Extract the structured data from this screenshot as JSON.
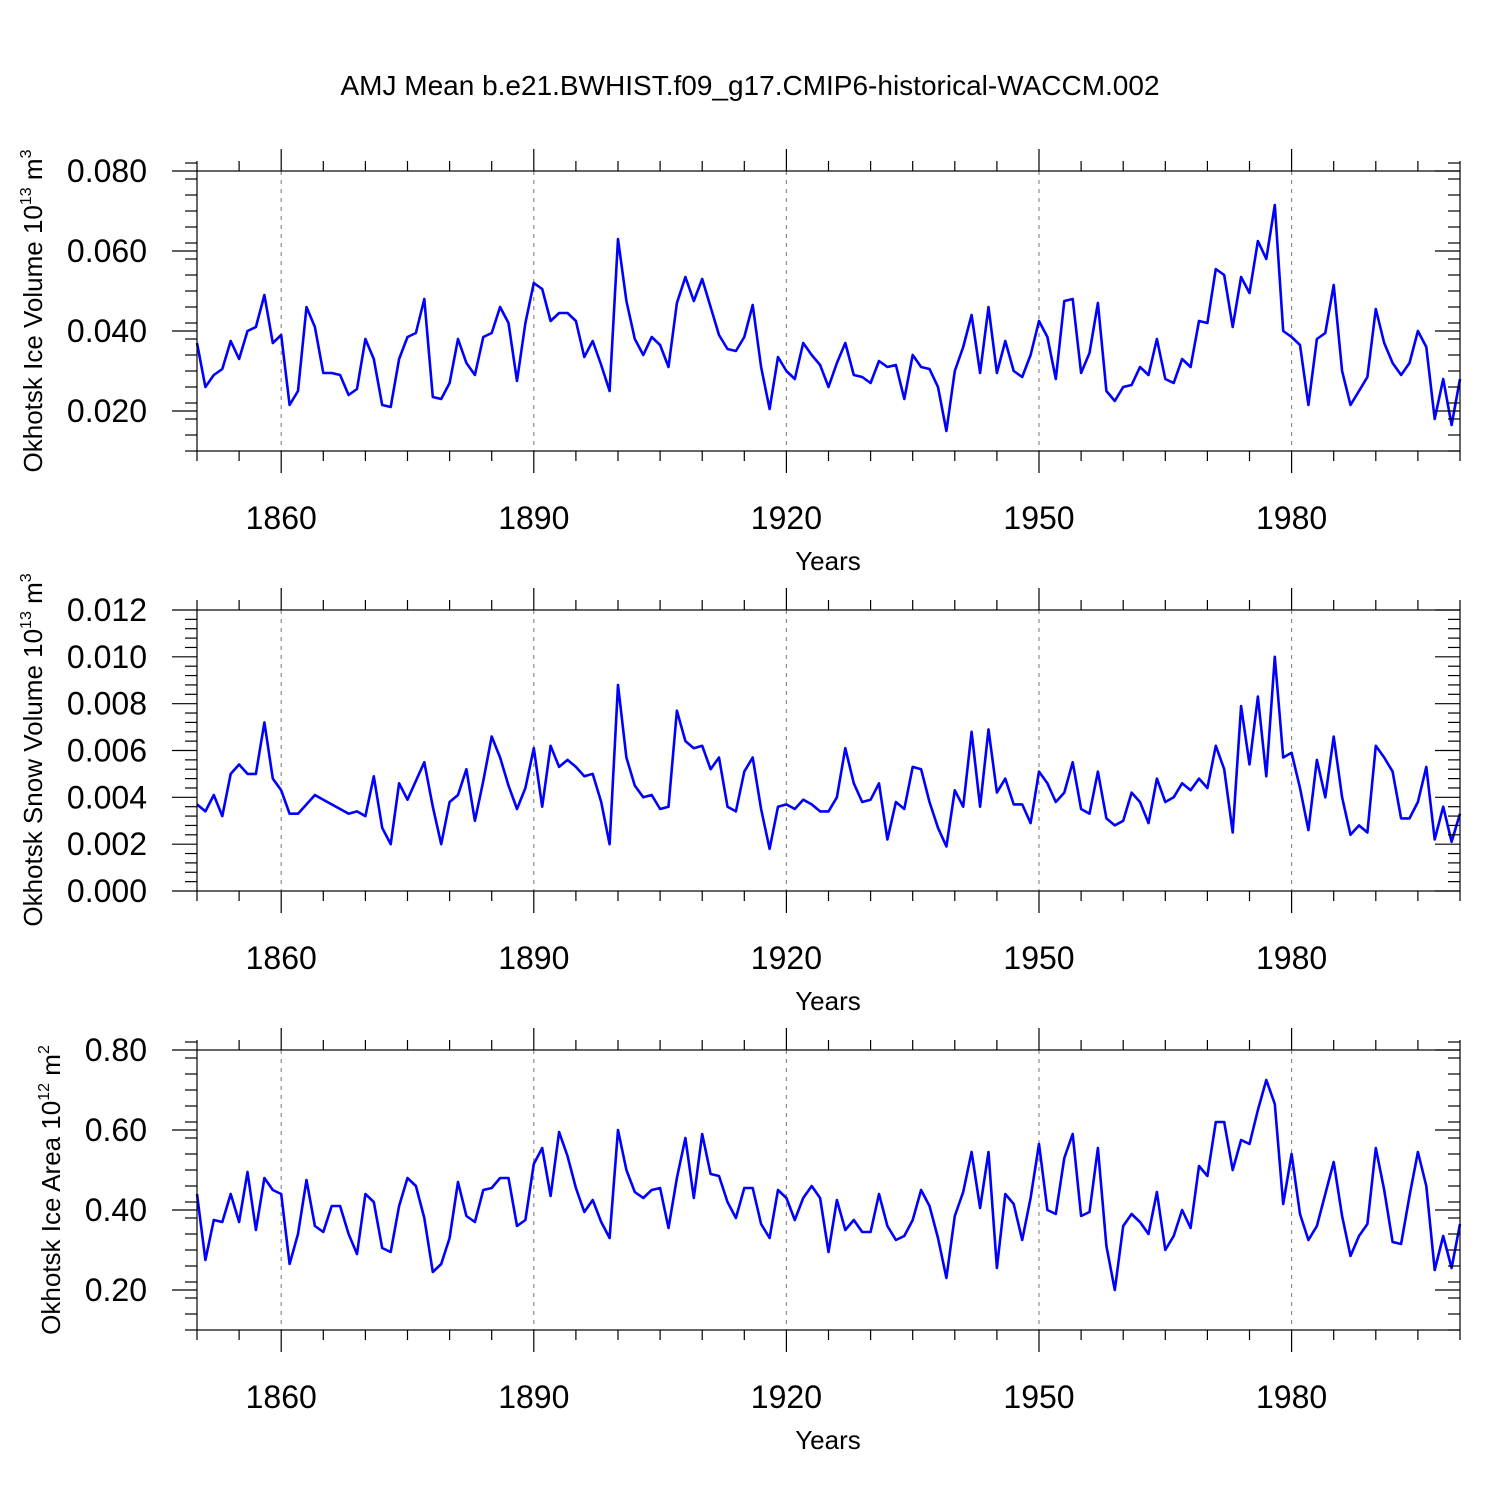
{
  "title": "AMJ Mean b.e21.BWHIST.f09_g17.CMIP6-historical-WACCM.002",
  "line_color": "#0000ff",
  "chart_data": [
    {
      "type": "line",
      "ylabel": "Okhotsk Ice Volume 10",
      "ylabel_exp": "13",
      "ylabel_unit": " m",
      "ylabel_unit_exp": "3",
      "xlabel": "Years",
      "xlim": [
        1850,
        2000
      ],
      "ylim": [
        0.01,
        0.08
      ],
      "yticks": [
        0.02,
        0.04,
        0.06,
        0.08
      ],
      "ytick_labels": [
        "0.020",
        "0.040",
        "0.060",
        "0.080"
      ],
      "xticks": [
        1860,
        1890,
        1920,
        1950,
        1980
      ],
      "xtick_labels": [
        "1860",
        "1890",
        "1920",
        "1950",
        "1980"
      ],
      "grid": "vertical dashed at major x ticks",
      "x_start": 1850,
      "values": [
        0.037,
        0.026,
        0.029,
        0.0305,
        0.0375,
        0.033,
        0.04,
        0.041,
        0.049,
        0.037,
        0.039,
        0.0215,
        0.025,
        0.046,
        0.041,
        0.0295,
        0.0295,
        0.029,
        0.024,
        0.0255,
        0.038,
        0.033,
        0.0215,
        0.021,
        0.033,
        0.0385,
        0.0395,
        0.048,
        0.0235,
        0.023,
        0.027,
        0.038,
        0.032,
        0.029,
        0.0385,
        0.0395,
        0.046,
        0.042,
        0.0275,
        0.042,
        0.052,
        0.0505,
        0.0425,
        0.0445,
        0.0445,
        0.0425,
        0.0335,
        0.0375,
        0.0315,
        0.025,
        0.063,
        0.0475,
        0.038,
        0.034,
        0.0385,
        0.0365,
        0.031,
        0.047,
        0.0535,
        0.0475,
        0.053,
        0.046,
        0.039,
        0.0355,
        0.035,
        0.0385,
        0.0465,
        0.031,
        0.0205,
        0.0335,
        0.03,
        0.028,
        0.037,
        0.034,
        0.0315,
        0.026,
        0.032,
        0.037,
        0.029,
        0.0285,
        0.027,
        0.0325,
        0.031,
        0.0315,
        0.023,
        0.034,
        0.031,
        0.0305,
        0.026,
        0.015,
        0.03,
        0.036,
        0.044,
        0.0295,
        0.046,
        0.0295,
        0.0375,
        0.03,
        0.0285,
        0.034,
        0.0425,
        0.0385,
        0.028,
        0.0475,
        0.048,
        0.0295,
        0.0345,
        0.047,
        0.025,
        0.0225,
        0.026,
        0.0265,
        0.031,
        0.029,
        0.038,
        0.028,
        0.027,
        0.033,
        0.031,
        0.0425,
        0.042,
        0.0555,
        0.054,
        0.041,
        0.0535,
        0.0495,
        0.0625,
        0.058,
        0.0715,
        0.04,
        0.0385,
        0.0365,
        0.0215,
        0.038,
        0.0395,
        0.0515,
        0.03,
        0.0215,
        0.025,
        0.0285,
        0.0455,
        0.037,
        0.032,
        0.029,
        0.032,
        0.04,
        0.036,
        0.018,
        0.028,
        0.0165,
        0.028
      ]
    },
    {
      "type": "line",
      "ylabel": "Okhotsk Snow Volume 10",
      "ylabel_exp": "13",
      "ylabel_unit": " m",
      "ylabel_unit_exp": "3",
      "xlabel": "Years",
      "xlim": [
        1850,
        2000
      ],
      "ylim": [
        0.0,
        0.012
      ],
      "yticks": [
        0.0,
        0.002,
        0.004,
        0.006,
        0.008,
        0.01,
        0.012
      ],
      "ytick_labels": [
        "0.000",
        "0.002",
        "0.004",
        "0.006",
        "0.008",
        "0.010",
        "0.012"
      ],
      "xticks": [
        1860,
        1890,
        1920,
        1950,
        1980
      ],
      "xtick_labels": [
        "1860",
        "1890",
        "1920",
        "1950",
        "1980"
      ],
      "grid": "vertical dashed at major x ticks",
      "x_start": 1850,
      "values": [
        0.0037,
        0.0034,
        0.0041,
        0.0032,
        0.005,
        0.0054,
        0.005,
        0.005,
        0.0072,
        0.0048,
        0.0043,
        0.0033,
        0.0033,
        0.0037,
        0.0041,
        0.0039,
        0.0037,
        0.0035,
        0.0033,
        0.0034,
        0.0032,
        0.0049,
        0.0027,
        0.002,
        0.0046,
        0.0039,
        0.0047,
        0.0055,
        0.0036,
        0.002,
        0.0038,
        0.0041,
        0.0052,
        0.003,
        0.0047,
        0.0066,
        0.0057,
        0.0045,
        0.0035,
        0.0044,
        0.0061,
        0.0036,
        0.0062,
        0.0053,
        0.0056,
        0.0053,
        0.0049,
        0.005,
        0.0038,
        0.002,
        0.0088,
        0.0057,
        0.0045,
        0.004,
        0.0041,
        0.0035,
        0.0036,
        0.0077,
        0.0064,
        0.0061,
        0.0062,
        0.0052,
        0.0057,
        0.0036,
        0.0034,
        0.0051,
        0.0057,
        0.0035,
        0.0018,
        0.0036,
        0.0037,
        0.0035,
        0.0039,
        0.0037,
        0.0034,
        0.0034,
        0.004,
        0.0061,
        0.0046,
        0.0038,
        0.0039,
        0.0046,
        0.0022,
        0.0038,
        0.0035,
        0.0053,
        0.0052,
        0.0038,
        0.0027,
        0.0019,
        0.0043,
        0.0036,
        0.0068,
        0.0036,
        0.0069,
        0.0042,
        0.0048,
        0.0037,
        0.0037,
        0.0029,
        0.0051,
        0.0046,
        0.0038,
        0.0042,
        0.0055,
        0.0035,
        0.0033,
        0.0051,
        0.0031,
        0.0028,
        0.003,
        0.0042,
        0.0038,
        0.0029,
        0.0048,
        0.0038,
        0.004,
        0.0046,
        0.0043,
        0.0048,
        0.0044,
        0.0062,
        0.0052,
        0.0025,
        0.0079,
        0.0054,
        0.0083,
        0.0049,
        0.01,
        0.0057,
        0.0059,
        0.0044,
        0.0026,
        0.0056,
        0.004,
        0.0066,
        0.004,
        0.0024,
        0.0028,
        0.0025,
        0.0062,
        0.0057,
        0.0051,
        0.0031,
        0.0031,
        0.0038,
        0.0053,
        0.0022,
        0.0036,
        0.0021,
        0.0033
      ]
    },
    {
      "type": "line",
      "ylabel": "Okhotsk Ice Area 10",
      "ylabel_exp": "12",
      "ylabel_unit": " m",
      "ylabel_unit_exp": "2",
      "xlabel": "Years",
      "xlim": [
        1850,
        2000
      ],
      "ylim": [
        0.1,
        0.8
      ],
      "yticks": [
        0.2,
        0.4,
        0.6,
        0.8
      ],
      "ytick_labels": [
        "0.20",
        "0.40",
        "0.60",
        "0.80"
      ],
      "xticks": [
        1860,
        1890,
        1920,
        1950,
        1980
      ],
      "xtick_labels": [
        "1860",
        "1890",
        "1920",
        "1950",
        "1980"
      ],
      "grid": "vertical dashed at major x ticks",
      "x_start": 1850,
      "values": [
        0.44,
        0.275,
        0.375,
        0.37,
        0.44,
        0.37,
        0.495,
        0.35,
        0.48,
        0.45,
        0.44,
        0.265,
        0.34,
        0.475,
        0.36,
        0.345,
        0.41,
        0.41,
        0.34,
        0.29,
        0.44,
        0.42,
        0.305,
        0.295,
        0.41,
        0.48,
        0.46,
        0.38,
        0.245,
        0.265,
        0.33,
        0.47,
        0.385,
        0.37,
        0.45,
        0.455,
        0.48,
        0.48,
        0.36,
        0.375,
        0.515,
        0.555,
        0.435,
        0.595,
        0.535,
        0.455,
        0.395,
        0.425,
        0.37,
        0.33,
        0.6,
        0.5,
        0.445,
        0.43,
        0.45,
        0.455,
        0.355,
        0.48,
        0.58,
        0.43,
        0.59,
        0.49,
        0.485,
        0.42,
        0.38,
        0.455,
        0.455,
        0.365,
        0.33,
        0.45,
        0.43,
        0.375,
        0.43,
        0.46,
        0.43,
        0.295,
        0.425,
        0.35,
        0.375,
        0.345,
        0.345,
        0.44,
        0.36,
        0.325,
        0.335,
        0.375,
        0.45,
        0.41,
        0.33,
        0.23,
        0.385,
        0.445,
        0.545,
        0.405,
        0.545,
        0.255,
        0.44,
        0.415,
        0.325,
        0.43,
        0.565,
        0.4,
        0.39,
        0.53,
        0.59,
        0.385,
        0.395,
        0.555,
        0.31,
        0.2,
        0.36,
        0.39,
        0.37,
        0.34,
        0.445,
        0.3,
        0.335,
        0.4,
        0.355,
        0.51,
        0.485,
        0.62,
        0.62,
        0.5,
        0.575,
        0.565,
        0.65,
        0.725,
        0.665,
        0.415,
        0.54,
        0.39,
        0.325,
        0.36,
        0.44,
        0.52,
        0.385,
        0.285,
        0.335,
        0.365,
        0.555,
        0.45,
        0.32,
        0.315,
        0.435,
        0.545,
        0.46,
        0.25,
        0.335,
        0.255,
        0.365
      ]
    }
  ]
}
